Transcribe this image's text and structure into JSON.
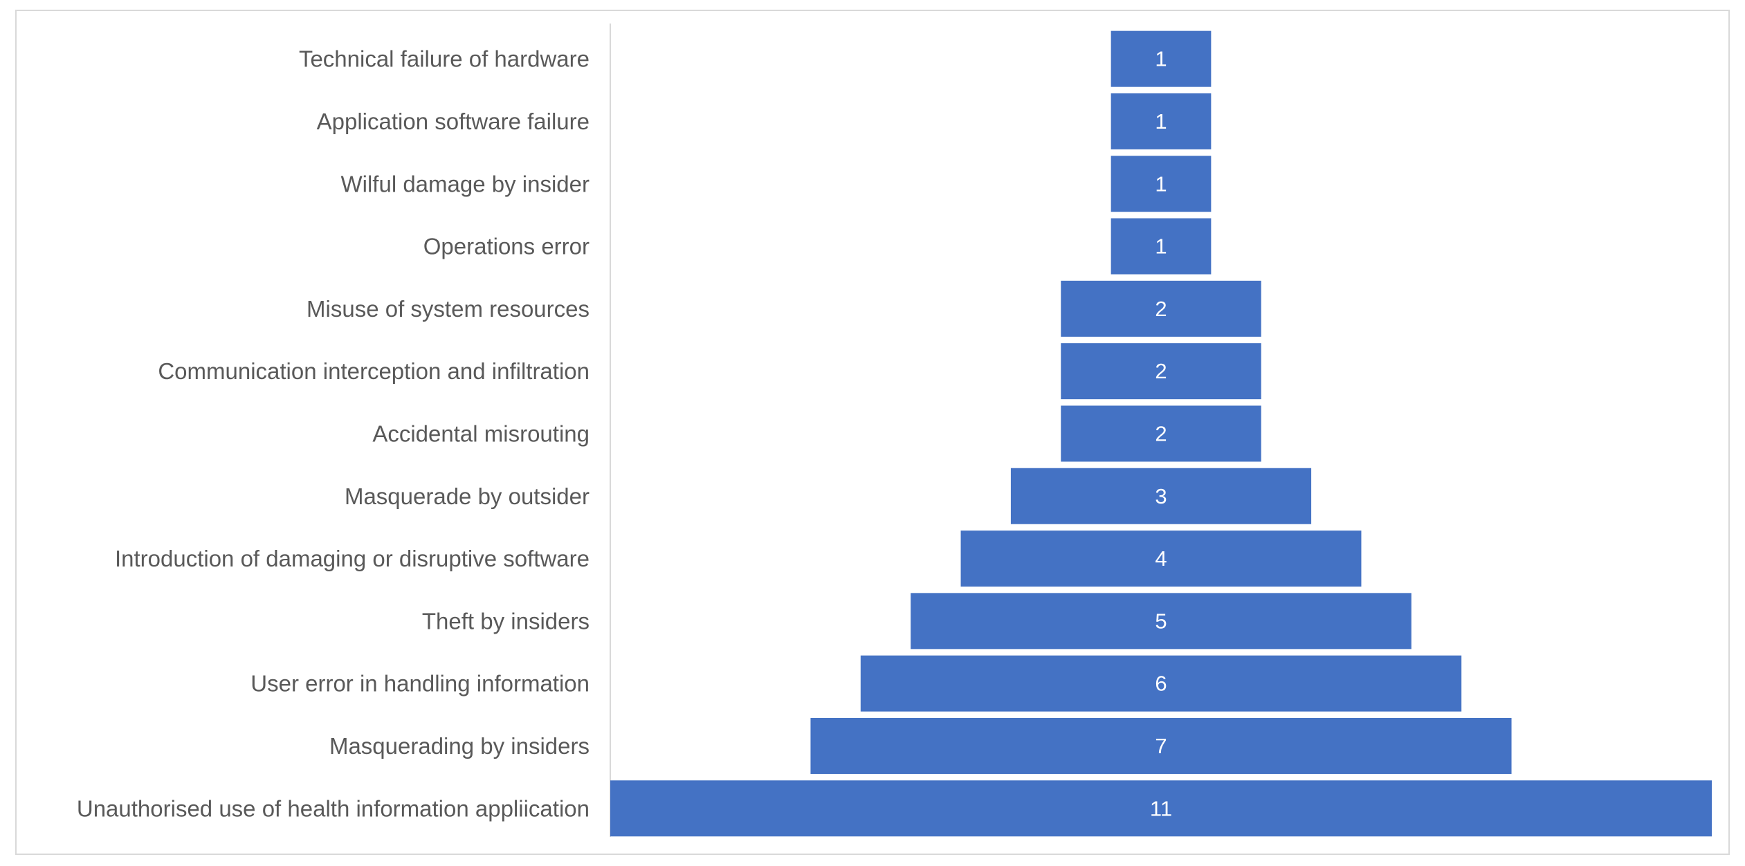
{
  "chart_data": {
    "type": "bar",
    "orientation": "horizontal",
    "style": "funnel (centered bars)",
    "title": "",
    "xlabel": "",
    "ylabel": "",
    "categories": [
      "Technical failure of hardware",
      "Application software failure",
      "Wilful damage by insider",
      "Operations error",
      "Misuse of system resources",
      "Communication interception and infiltration",
      "Accidental misrouting",
      "Masquerade by outsider",
      "Introduction of damaging or disruptive software",
      "Theft by insiders",
      "User error in handling information",
      "Masquerading by insiders",
      "Unauthorised use of health information appliication"
    ],
    "values": [
      1,
      1,
      1,
      1,
      2,
      2,
      2,
      3,
      4,
      5,
      6,
      7,
      11
    ],
    "data_labels": [
      "1",
      "1",
      "1",
      "1",
      "2",
      "2",
      "2",
      "3",
      "4",
      "5",
      "6",
      "7",
      "11"
    ],
    "xlim": [
      0,
      11
    ],
    "bar_color": "#4472c4",
    "label_color": "#595959",
    "data_label_color": "#ffffff",
    "axis_line_color": "#d9d9d9",
    "grid": false,
    "legend": "none"
  }
}
